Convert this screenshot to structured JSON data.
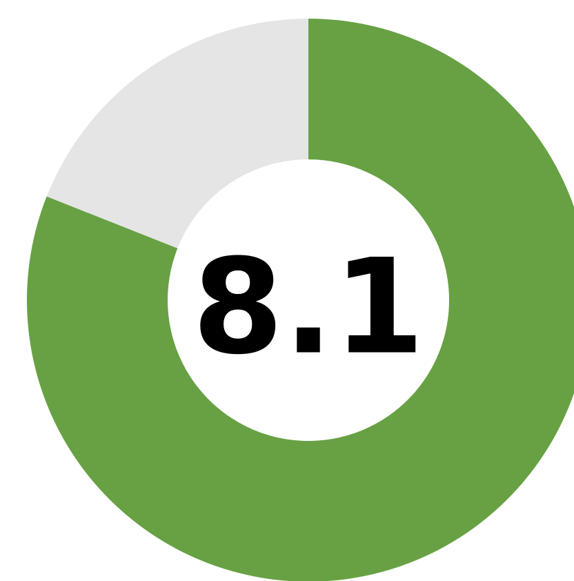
{
  "chart_data": {
    "type": "donut",
    "value": 8.1,
    "ylim": [
      0,
      10
    ],
    "color": "#67a143",
    "track_color": "#e5e5e5"
  }
}
